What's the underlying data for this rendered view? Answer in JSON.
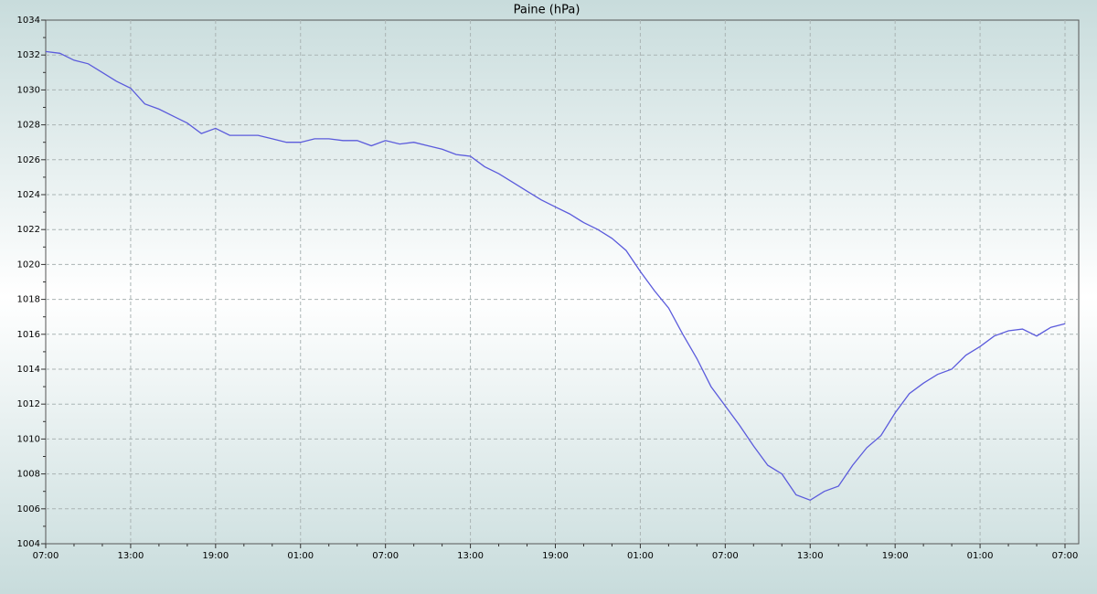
{
  "chart_data": {
    "type": "line",
    "title": "Paine (hPa)",
    "categories": [
      "07:00",
      null,
      null,
      null,
      null,
      null,
      "13:00",
      null,
      null,
      null,
      null,
      null,
      "19:00",
      null,
      null,
      null,
      null,
      null,
      "01:00",
      null,
      null,
      null,
      null,
      null,
      "07:00",
      null,
      null,
      null,
      null,
      null,
      "13:00",
      null,
      null,
      null,
      null,
      null,
      "19:00",
      null,
      null,
      null,
      null,
      null,
      "01:00",
      null,
      null,
      null,
      null,
      null,
      "07:00",
      null,
      null,
      null,
      null,
      null,
      "13:00",
      null,
      null,
      null,
      null,
      null,
      "19:00",
      null,
      null,
      null,
      null,
      null,
      "01:00",
      null,
      null,
      null,
      null,
      null,
      "07:00"
    ],
    "series": [
      {
        "name": "Paine",
        "color": "#5b5bdc",
        "values": [
          1032.2,
          1032.1,
          1031.7,
          1031.5,
          1031.0,
          1030.5,
          1030.1,
          1029.2,
          1028.9,
          1028.5,
          1028.1,
          1027.5,
          1027.8,
          1027.4,
          1027.4,
          1027.4,
          1027.2,
          1027.0,
          1027.0,
          1027.2,
          1027.2,
          1027.1,
          1027.1,
          1026.8,
          1027.1,
          1026.9,
          1027.0,
          1026.8,
          1026.6,
          1026.3,
          1026.2,
          1025.6,
          1025.2,
          1024.7,
          1024.2,
          1023.7,
          1023.3,
          1022.9,
          1022.4,
          1022.0,
          1021.5,
          1020.8,
          1019.6,
          1018.5,
          1017.5,
          1016.0,
          1014.6,
          1013.0,
          1011.9,
          1010.8,
          1009.6,
          1008.5,
          1008.0,
          1006.8,
          1006.5,
          1007.0,
          1007.3,
          1008.5,
          1009.5,
          1010.2,
          1011.5,
          1012.6,
          1013.2,
          1013.7,
          1014.0,
          1014.8,
          1015.3,
          1015.9,
          1016.2,
          1016.3,
          1015.9,
          1016.4,
          1016.6
        ]
      }
    ],
    "ylim": [
      1004,
      1034
    ],
    "yticks": [
      1004,
      1006,
      1008,
      1010,
      1012,
      1014,
      1016,
      1018,
      1020,
      1022,
      1024,
      1026,
      1028,
      1030,
      1032,
      1034
    ],
    "grid": true
  }
}
